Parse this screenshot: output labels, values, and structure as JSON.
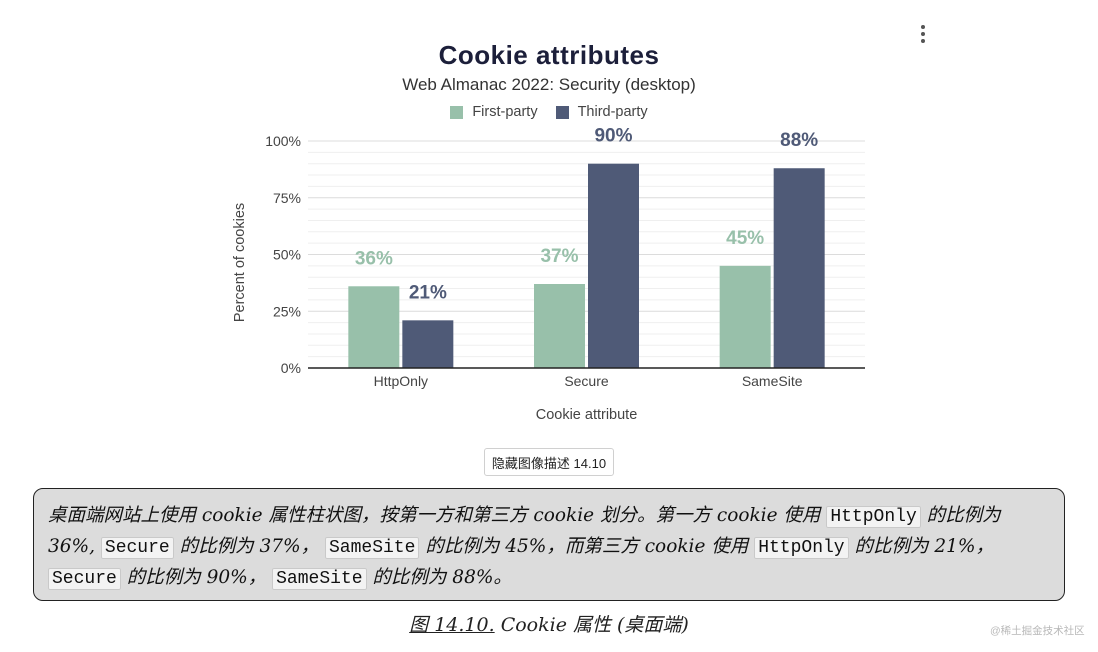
{
  "menu": {
    "icon": "more-vertical-icon"
  },
  "chart_data": {
    "type": "bar",
    "title": "Cookie attributes",
    "subtitle": "Web Almanac 2022: Security (desktop)",
    "xlabel": "Cookie attribute",
    "ylabel": "Percent of cookies",
    "ylim": [
      0,
      100
    ],
    "yticks": [
      "0%",
      "25%",
      "50%",
      "75%",
      "100%"
    ],
    "categories": [
      "HttpOnly",
      "Secure",
      "SameSite"
    ],
    "series": [
      {
        "name": "First-party",
        "color": "#98c0aa",
        "values": [
          36,
          37,
          45
        ],
        "labels": [
          "36%",
          "37%",
          "45%"
        ]
      },
      {
        "name": "Third-party",
        "color": "#4f5a77",
        "values": [
          21,
          90,
          88
        ],
        "labels": [
          "21%",
          "90%",
          "88%"
        ]
      }
    ],
    "legend_position": "top-center",
    "grid": true
  },
  "description_button": "隐藏图像描述 14.10",
  "description": {
    "p1": "桌面端网站上使用 cookie 属性柱状图，按第一方和第三方 cookie 划分。第一方 cookie 使用",
    "c1": "HttpOnly",
    "p2": "的比例为 36%,",
    "c2": "Secure",
    "p3": "的比例为 37%，",
    "c3": "SameSite",
    "p4": "的比例为 45%，而第三方 cookie 使用",
    "c4": "HttpOnly",
    "p5": "的比例为 21%，",
    "c5": "Secure",
    "p6": "的比例为 90%，",
    "c6": "SameSite",
    "p7": "的比例为 88%。"
  },
  "caption": {
    "ref": "图 14.10.",
    "text": "Cookie 属性 (桌面端)"
  },
  "watermark": "@稀土掘金技术社区"
}
